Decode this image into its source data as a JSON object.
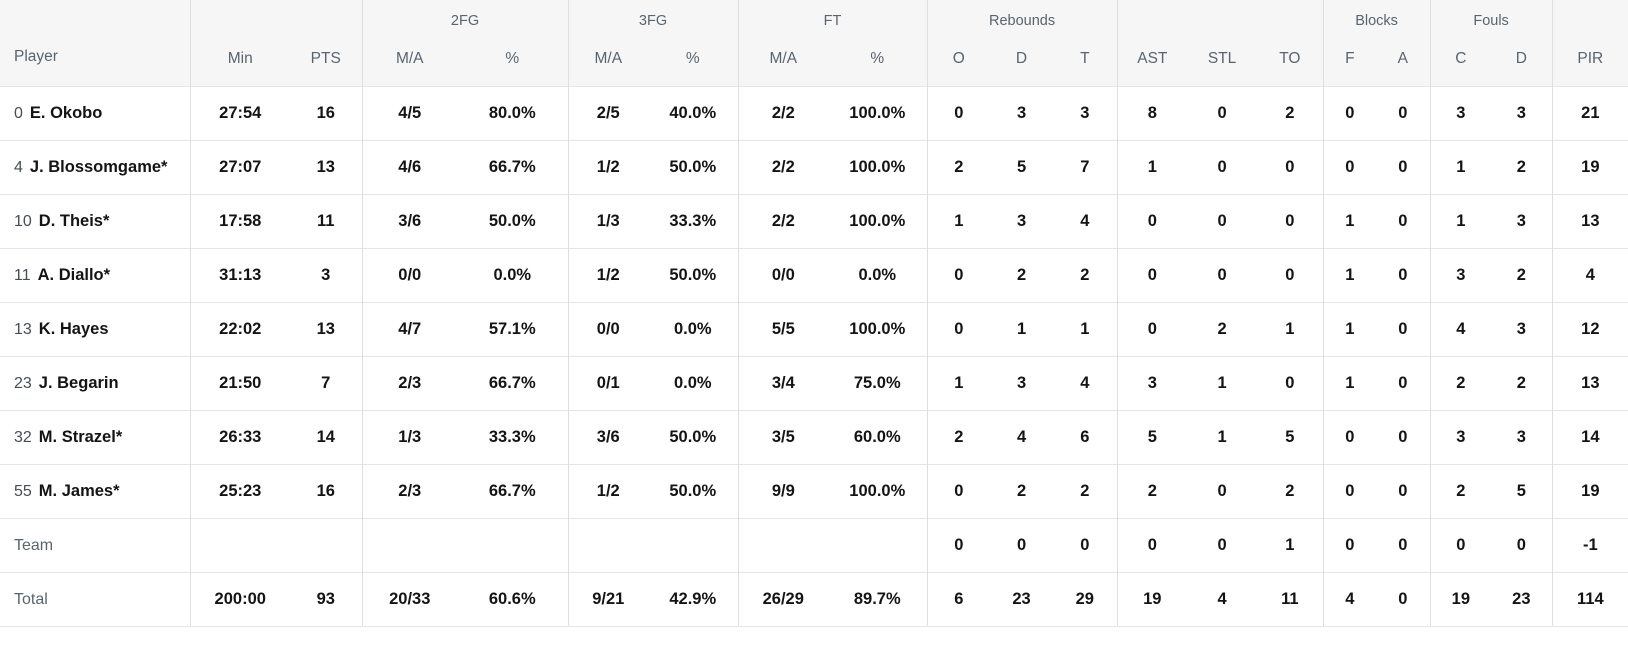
{
  "colors": {
    "header_bg": "#f6f6f6",
    "header_text": "#5a646e",
    "row_border": "#e6e6e6",
    "group_divider": "#dfdfdf",
    "value_text": "#141414",
    "jersey_text": "#474d54",
    "muted_label": "#5a646e",
    "page_bg": "#ffffff"
  },
  "table": {
    "groups": {
      "fg2": "2FG",
      "fg3": "3FG",
      "ft": "FT",
      "rebounds": "Rebounds",
      "blocks": "Blocks",
      "fouls": "Fouls"
    },
    "headers": {
      "player": "Player",
      "min": "Min",
      "pts": "PTS",
      "ma": "M/A",
      "pct": "%",
      "reb_o": "O",
      "reb_d": "D",
      "reb_t": "T",
      "ast": "AST",
      "stl": "STL",
      "to": "TO",
      "blk_f": "F",
      "blk_a": "A",
      "foul_c": "C",
      "foul_d": "D",
      "pir": "PIR"
    },
    "rows": [
      {
        "jersey": "0",
        "name": "E. Okobo",
        "type": "player",
        "cells": {
          "min": "27:54",
          "pts": "16",
          "fg2_ma": "4/5",
          "fg2_pct": "80.0%",
          "fg3_ma": "2/5",
          "fg3_pct": "40.0%",
          "ft_ma": "2/2",
          "ft_pct": "100.0%",
          "reb_o": "0",
          "reb_d": "3",
          "reb_t": "3",
          "ast": "8",
          "stl": "0",
          "to": "2",
          "blk_f": "0",
          "blk_a": "0",
          "foul_c": "3",
          "foul_d": "3",
          "pir": "21"
        }
      },
      {
        "jersey": "4",
        "name": "J. Blossomgame*",
        "type": "player",
        "cells": {
          "min": "27:07",
          "pts": "13",
          "fg2_ma": "4/6",
          "fg2_pct": "66.7%",
          "fg3_ma": "1/2",
          "fg3_pct": "50.0%",
          "ft_ma": "2/2",
          "ft_pct": "100.0%",
          "reb_o": "2",
          "reb_d": "5",
          "reb_t": "7",
          "ast": "1",
          "stl": "0",
          "to": "0",
          "blk_f": "0",
          "blk_a": "0",
          "foul_c": "1",
          "foul_d": "2",
          "pir": "19"
        }
      },
      {
        "jersey": "10",
        "name": "D. Theis*",
        "type": "player",
        "cells": {
          "min": "17:58",
          "pts": "11",
          "fg2_ma": "3/6",
          "fg2_pct": "50.0%",
          "fg3_ma": "1/3",
          "fg3_pct": "33.3%",
          "ft_ma": "2/2",
          "ft_pct": "100.0%",
          "reb_o": "1",
          "reb_d": "3",
          "reb_t": "4",
          "ast": "0",
          "stl": "0",
          "to": "0",
          "blk_f": "1",
          "blk_a": "0",
          "foul_c": "1",
          "foul_d": "3",
          "pir": "13"
        }
      },
      {
        "jersey": "11",
        "name": "A. Diallo*",
        "type": "player",
        "cells": {
          "min": "31:13",
          "pts": "3",
          "fg2_ma": "0/0",
          "fg2_pct": "0.0%",
          "fg3_ma": "1/2",
          "fg3_pct": "50.0%",
          "ft_ma": "0/0",
          "ft_pct": "0.0%",
          "reb_o": "0",
          "reb_d": "2",
          "reb_t": "2",
          "ast": "0",
          "stl": "0",
          "to": "0",
          "blk_f": "1",
          "blk_a": "0",
          "foul_c": "3",
          "foul_d": "2",
          "pir": "4"
        }
      },
      {
        "jersey": "13",
        "name": "K. Hayes",
        "type": "player",
        "cells": {
          "min": "22:02",
          "pts": "13",
          "fg2_ma": "4/7",
          "fg2_pct": "57.1%",
          "fg3_ma": "0/0",
          "fg3_pct": "0.0%",
          "ft_ma": "5/5",
          "ft_pct": "100.0%",
          "reb_o": "0",
          "reb_d": "1",
          "reb_t": "1",
          "ast": "0",
          "stl": "2",
          "to": "1",
          "blk_f": "1",
          "blk_a": "0",
          "foul_c": "4",
          "foul_d": "3",
          "pir": "12"
        }
      },
      {
        "jersey": "23",
        "name": "J. Begarin",
        "type": "player",
        "cells": {
          "min": "21:50",
          "pts": "7",
          "fg2_ma": "2/3",
          "fg2_pct": "66.7%",
          "fg3_ma": "0/1",
          "fg3_pct": "0.0%",
          "ft_ma": "3/4",
          "ft_pct": "75.0%",
          "reb_o": "1",
          "reb_d": "3",
          "reb_t": "4",
          "ast": "3",
          "stl": "1",
          "to": "0",
          "blk_f": "1",
          "blk_a": "0",
          "foul_c": "2",
          "foul_d": "2",
          "pir": "13"
        }
      },
      {
        "jersey": "32",
        "name": "M. Strazel*",
        "type": "player",
        "cells": {
          "min": "26:33",
          "pts": "14",
          "fg2_ma": "1/3",
          "fg2_pct": "33.3%",
          "fg3_ma": "3/6",
          "fg3_pct": "50.0%",
          "ft_ma": "3/5",
          "ft_pct": "60.0%",
          "reb_o": "2",
          "reb_d": "4",
          "reb_t": "6",
          "ast": "5",
          "stl": "1",
          "to": "5",
          "blk_f": "0",
          "blk_a": "0",
          "foul_c": "3",
          "foul_d": "3",
          "pir": "14"
        }
      },
      {
        "jersey": "55",
        "name": "M. James*",
        "type": "player",
        "cells": {
          "min": "25:23",
          "pts": "16",
          "fg2_ma": "2/3",
          "fg2_pct": "66.7%",
          "fg3_ma": "1/2",
          "fg3_pct": "50.0%",
          "ft_ma": "9/9",
          "ft_pct": "100.0%",
          "reb_o": "0",
          "reb_d": "2",
          "reb_t": "2",
          "ast": "2",
          "stl": "0",
          "to": "2",
          "blk_f": "0",
          "blk_a": "0",
          "foul_c": "2",
          "foul_d": "5",
          "pir": "19"
        }
      },
      {
        "jersey": "",
        "name": "Team",
        "type": "team",
        "cells": {
          "min": "",
          "pts": "",
          "fg2_ma": "",
          "fg2_pct": "",
          "fg3_ma": "",
          "fg3_pct": "",
          "ft_ma": "",
          "ft_pct": "",
          "reb_o": "0",
          "reb_d": "0",
          "reb_t": "0",
          "ast": "0",
          "stl": "0",
          "to": "1",
          "blk_f": "0",
          "blk_a": "0",
          "foul_c": "0",
          "foul_d": "0",
          "pir": "-1"
        }
      },
      {
        "jersey": "",
        "name": "Total",
        "type": "total",
        "cells": {
          "min": "200:00",
          "pts": "93",
          "fg2_ma": "20/33",
          "fg2_pct": "60.6%",
          "fg3_ma": "9/21",
          "fg3_pct": "42.9%",
          "ft_ma": "26/29",
          "ft_pct": "89.7%",
          "reb_o": "6",
          "reb_d": "23",
          "reb_t": "29",
          "ast": "19",
          "stl": "4",
          "to": "11",
          "blk_f": "4",
          "blk_a": "0",
          "foul_c": "19",
          "foul_d": "23",
          "pir": "114"
        }
      }
    ]
  }
}
